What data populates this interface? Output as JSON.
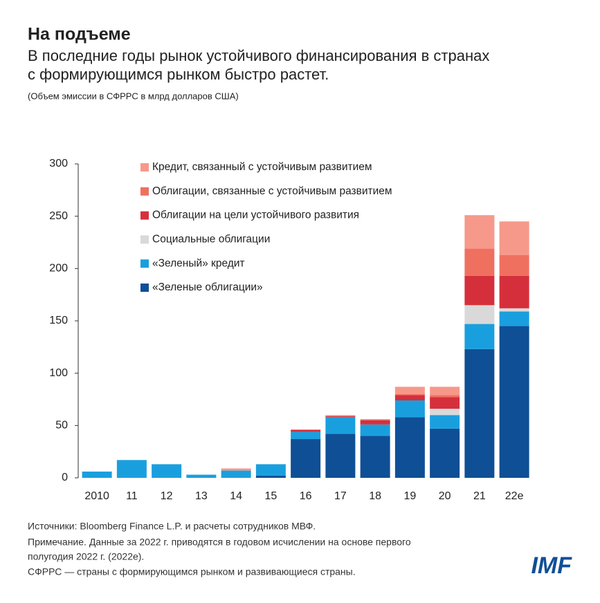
{
  "chart_data": {
    "type": "bar",
    "stacked": true,
    "title": "На подъеме",
    "subtitle": [
      "В последние годы рынок устойчивого финансирования в странах",
      "с формирующимся рынком быстро растет."
    ],
    "y_label": "(Объем эмиссии в СФРРС в млрд долларов США)",
    "categories": [
      "2010",
      "11",
      "12",
      "13",
      "14",
      "15",
      "16",
      "17",
      "18",
      "19",
      "20",
      "21",
      "22e"
    ],
    "series": [
      {
        "name": "«Зеленые облигации»",
        "color": "#0f4f96",
        "values": [
          0,
          0,
          0,
          0,
          0,
          2,
          37,
          42,
          40,
          58,
          47,
          123,
          145
        ]
      },
      {
        "name": "«Зеленый» кредит",
        "color": "#1a9fde",
        "values": [
          6,
          17,
          13,
          3,
          7,
          11,
          7,
          16,
          11,
          16,
          13,
          24,
          14
        ]
      },
      {
        "name": "Социальные облигации",
        "color": "#d9d9d9",
        "values": [
          0,
          0,
          0,
          0,
          0,
          0,
          0,
          0,
          0,
          0,
          6,
          18,
          3
        ]
      },
      {
        "name": "Облигации на цели устойчивого развития",
        "color": "#d62f3c",
        "values": [
          0,
          0,
          0,
          0,
          0,
          0,
          2,
          1,
          4,
          5,
          11,
          28,
          31
        ]
      },
      {
        "name": "Облигации, связанные с устойчивым развитием",
        "color": "#f07060",
        "values": [
          0,
          0,
          0,
          0,
          0,
          0,
          0,
          0,
          1,
          1,
          2,
          26,
          20
        ]
      },
      {
        "name": "Кредит, связанный с устойчивым развитием",
        "color": "#f6998a",
        "values": [
          0,
          0,
          0,
          0,
          2,
          0,
          0,
          1,
          0,
          7,
          8,
          32,
          32
        ]
      }
    ],
    "ylim": [
      0,
      300
    ],
    "yticks": [
      0,
      50,
      100,
      150,
      200,
      250,
      300
    ],
    "notes": [
      "Источники: Bloomberg Finance L.P. и расчеты сотрудников МВФ.",
      "Примечание. Данные за 2022 г. приводятся в годовом исчислении на основе первого",
      "полугодия 2022 г. (2022e).",
      "СФРРС — страны с формирующимся рынком и развивающиеся страны."
    ],
    "logo": "IMF"
  }
}
